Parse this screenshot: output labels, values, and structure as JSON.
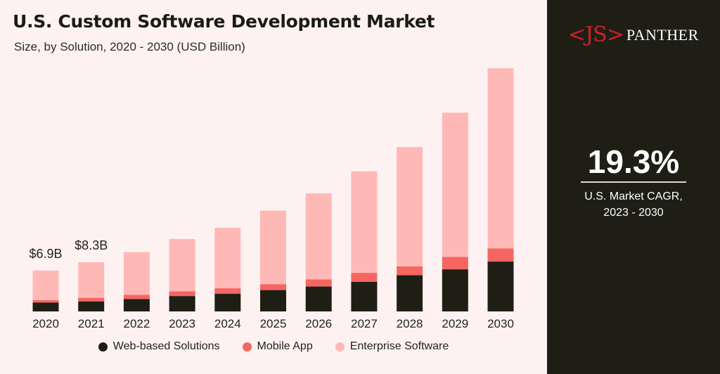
{
  "header": {
    "title": "U.S. Custom Software Development Market",
    "subtitle": "Size, by Solution, 2020 - 2030 (USD Billion)"
  },
  "brand": {
    "logo_mark": "<JS>",
    "logo_text": "PANTHER"
  },
  "highlight": {
    "value": "19.3%",
    "label_line1": "U.S. Market CAGR,",
    "label_line2": "2023 - 2030"
  },
  "colors": {
    "web_based": "#1e1e15",
    "mobile_app": "#f56561",
    "enterprise": "#feb9b7",
    "accent": "#d01f2a"
  },
  "chart_data": {
    "type": "bar",
    "stacked": true,
    "categories": [
      "2020",
      "2021",
      "2022",
      "2023",
      "2024",
      "2025",
      "2026",
      "2027",
      "2028",
      "2029",
      "2030"
    ],
    "series": [
      {
        "name": "Web-based Solutions",
        "values": [
          1.5,
          1.7,
          2.1,
          2.6,
          3.0,
          3.6,
          4.2,
          5.0,
          6.1,
          7.1,
          8.4
        ]
      },
      {
        "name": "Mobile App",
        "values": [
          0.4,
          0.6,
          0.7,
          0.8,
          0.9,
          1.0,
          1.2,
          1.5,
          1.5,
          2.1,
          2.2
        ]
      },
      {
        "name": "Enterprise Software",
        "values": [
          5.0,
          6.0,
          7.2,
          8.8,
          10.2,
          12.4,
          14.5,
          17.1,
          20.1,
          24.3,
          30.4
        ]
      }
    ],
    "data_labels": [
      {
        "category": "2020",
        "text": "$6.9B"
      },
      {
        "category": "2021",
        "text": "$8.3B"
      }
    ],
    "ylim": [
      0,
      41
    ],
    "legend_position": "bottom",
    "grid": false
  }
}
